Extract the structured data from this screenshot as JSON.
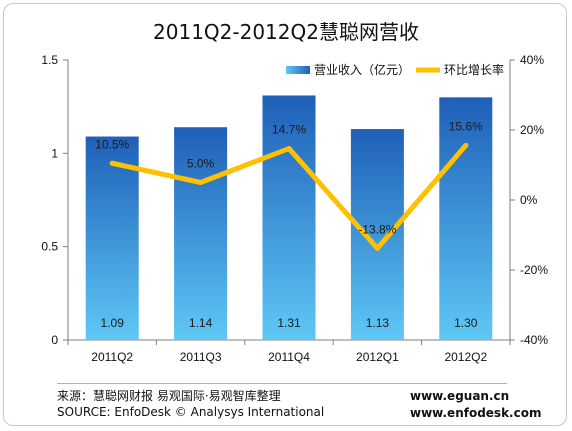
{
  "colors": {
    "bar_top": "#1f5fb8",
    "bar_bottom": "#5ec8f5",
    "line": "#ffc000",
    "axis": "#7f7f7f"
  },
  "chart_data": {
    "type": "bar",
    "title": "2011Q2-2012Q2慧聪网营收",
    "categories": [
      "2011Q2",
      "2011Q3",
      "2011Q4",
      "2012Q1",
      "2012Q2"
    ],
    "series": [
      {
        "name": "营业收入（亿元）",
        "type": "bar",
        "axis": "left",
        "values": [
          1.09,
          1.14,
          1.31,
          1.13,
          1.3
        ],
        "labels": [
          "1.09",
          "1.14",
          "1.31",
          "1.13",
          "1.30"
        ]
      },
      {
        "name": "环比增长率",
        "type": "line",
        "axis": "right",
        "values": [
          10.5,
          5.0,
          14.7,
          -13.8,
          15.6
        ],
        "labels": [
          "10.5%",
          "5.0%",
          "14.7%",
          "-13.8%",
          "15.6%"
        ]
      }
    ],
    "y_left": {
      "ylim": [
        0,
        1.5
      ],
      "ticks": [
        0,
        0.5,
        1,
        1.5
      ],
      "tick_labels": [
        "0",
        "0.5",
        "1",
        "1.5"
      ]
    },
    "y_right": {
      "ylim": [
        -40,
        40
      ],
      "ticks": [
        -40,
        -20,
        0,
        20,
        40
      ],
      "tick_labels": [
        "-40%",
        "-20%",
        "0%",
        "20%",
        "40%"
      ]
    },
    "legend_position": "top-right",
    "grid": false
  },
  "footer": {
    "source_cn": "来源：慧聪网财报  易观国际·易观智库整理",
    "source_en": "SOURCE: EnfoDesk © Analysys International",
    "url1": "www.eguan.cn",
    "url2": "www.enfodesk.com"
  }
}
